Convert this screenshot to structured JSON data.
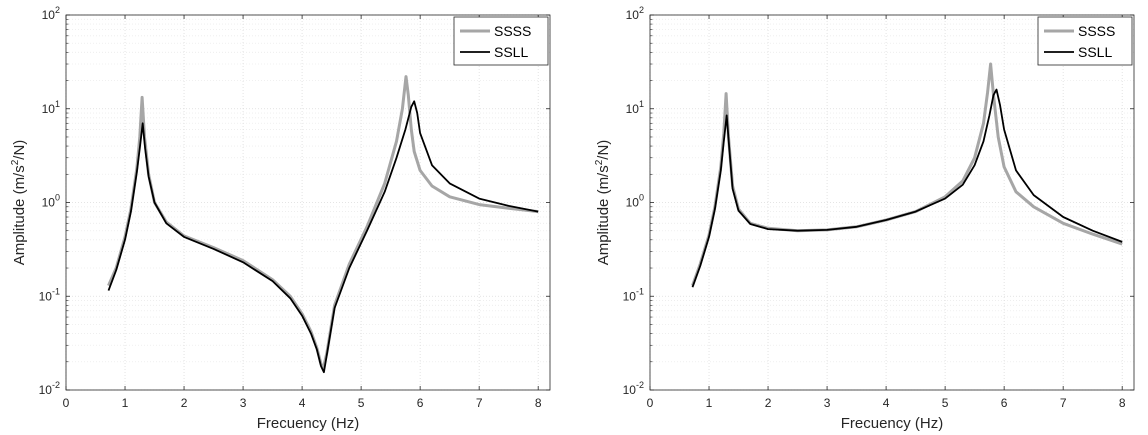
{
  "chart_data": [
    {
      "type": "line",
      "xlabel": "Frecuency (Hz)",
      "ylabel_prefix": "Amplitude (m/s",
      "ylabel_sup": "2",
      "ylabel_suffix": "/N)",
      "xlim": [
        0,
        8.2
      ],
      "ylim": [
        0.01,
        100
      ],
      "yscale": "log",
      "grid": true,
      "legend": "top-right",
      "xticks": [
        "0",
        "1",
        "2",
        "3",
        "4",
        "5",
        "6",
        "7",
        "8"
      ],
      "yticks": [
        {
          "base": "10",
          "exp": "-2"
        },
        {
          "base": "10",
          "exp": "-1"
        },
        {
          "base": "10",
          "exp": "0"
        },
        {
          "base": "10",
          "exp": "1"
        },
        {
          "base": "10",
          "exp": "2"
        }
      ],
      "series": [
        {
          "name": "SSSS",
          "color": "#a6a6a6",
          "x": [
            0.72,
            0.85,
            1.0,
            1.1,
            1.2,
            1.25,
            1.29,
            1.33,
            1.4,
            1.5,
            1.7,
            2.0,
            2.5,
            3.0,
            3.5,
            3.8,
            4.0,
            4.15,
            4.25,
            4.32,
            4.36,
            4.42,
            4.55,
            4.8,
            5.1,
            5.4,
            5.6,
            5.7,
            5.76,
            5.8,
            5.85,
            5.9,
            6.0,
            6.2,
            6.5,
            7.0,
            7.5,
            8.0
          ],
          "y": [
            0.13,
            0.2,
            0.43,
            0.85,
            2.3,
            5.0,
            13.2,
            5.0,
            2.0,
            1.0,
            0.62,
            0.44,
            0.33,
            0.24,
            0.15,
            0.1,
            0.065,
            0.042,
            0.028,
            0.019,
            0.017,
            0.025,
            0.08,
            0.22,
            0.55,
            1.6,
            4.5,
            10.0,
            22.0,
            14.0,
            6.0,
            3.5,
            2.2,
            1.5,
            1.15,
            0.95,
            0.87,
            0.8
          ]
        },
        {
          "name": "SSLL",
          "color": "#000000",
          "x": [
            0.72,
            0.85,
            1.0,
            1.1,
            1.2,
            1.25,
            1.3,
            1.34,
            1.4,
            1.5,
            1.7,
            2.0,
            2.5,
            3.0,
            3.5,
            3.8,
            4.0,
            4.15,
            4.25,
            4.32,
            4.37,
            4.42,
            4.55,
            4.8,
            5.1,
            5.4,
            5.6,
            5.75,
            5.85,
            5.9,
            5.95,
            6.0,
            6.2,
            6.5,
            7.0,
            7.5,
            8.0
          ],
          "y": [
            0.115,
            0.19,
            0.4,
            0.8,
            2.1,
            3.8,
            7.0,
            3.8,
            1.9,
            1.0,
            0.6,
            0.43,
            0.32,
            0.23,
            0.145,
            0.095,
            0.062,
            0.04,
            0.027,
            0.018,
            0.0155,
            0.024,
            0.075,
            0.2,
            0.5,
            1.3,
            3.0,
            6.0,
            10.5,
            12.0,
            9.0,
            5.5,
            2.5,
            1.6,
            1.1,
            0.92,
            0.8
          ]
        }
      ]
    },
    {
      "type": "line",
      "xlabel": "Frecuency (Hz)",
      "ylabel_prefix": "Amplitude (m/s",
      "ylabel_sup": "2",
      "ylabel_suffix": "/N)",
      "xlim": [
        0,
        8.2
      ],
      "ylim": [
        0.01,
        100
      ],
      "yscale": "log",
      "grid": true,
      "legend": "top-right",
      "xticks": [
        "0",
        "1",
        "2",
        "3",
        "4",
        "5",
        "6",
        "7",
        "8"
      ],
      "yticks": [
        {
          "base": "10",
          "exp": "-2"
        },
        {
          "base": "10",
          "exp": "-1"
        },
        {
          "base": "10",
          "exp": "0"
        },
        {
          "base": "10",
          "exp": "1"
        },
        {
          "base": "10",
          "exp": "2"
        }
      ],
      "series": [
        {
          "name": "SSSS",
          "color": "#a6a6a6",
          "x": [
            0.72,
            0.85,
            1.0,
            1.1,
            1.2,
            1.25,
            1.29,
            1.33,
            1.4,
            1.5,
            1.7,
            2.0,
            2.5,
            3.0,
            3.5,
            4.0,
            4.5,
            5.0,
            5.3,
            5.5,
            5.65,
            5.72,
            5.77,
            5.82,
            5.9,
            6.0,
            6.2,
            6.5,
            7.0,
            7.5,
            8.0
          ],
          "y": [
            0.13,
            0.22,
            0.45,
            0.9,
            2.4,
            5.5,
            14.5,
            5.0,
            1.5,
            0.85,
            0.6,
            0.53,
            0.5,
            0.51,
            0.55,
            0.65,
            0.8,
            1.15,
            1.7,
            3.0,
            7.0,
            15.0,
            30.0,
            14.0,
            5.0,
            2.4,
            1.3,
            0.9,
            0.6,
            0.46,
            0.36
          ]
        },
        {
          "name": "SSLL",
          "color": "#000000",
          "x": [
            0.72,
            0.85,
            1.0,
            1.1,
            1.2,
            1.25,
            1.3,
            1.34,
            1.4,
            1.5,
            1.7,
            2.0,
            2.5,
            3.0,
            3.5,
            4.0,
            4.5,
            5.0,
            5.3,
            5.5,
            5.65,
            5.75,
            5.82,
            5.87,
            5.93,
            6.0,
            6.2,
            6.5,
            7.0,
            7.5,
            8.0
          ],
          "y": [
            0.125,
            0.21,
            0.43,
            0.85,
            2.2,
            4.5,
            8.5,
            4.0,
            1.4,
            0.82,
            0.59,
            0.52,
            0.5,
            0.51,
            0.55,
            0.65,
            0.8,
            1.1,
            1.55,
            2.5,
            4.5,
            8.5,
            14.0,
            16.0,
            11.0,
            6.0,
            2.2,
            1.2,
            0.7,
            0.5,
            0.38
          ]
        }
      ]
    }
  ]
}
